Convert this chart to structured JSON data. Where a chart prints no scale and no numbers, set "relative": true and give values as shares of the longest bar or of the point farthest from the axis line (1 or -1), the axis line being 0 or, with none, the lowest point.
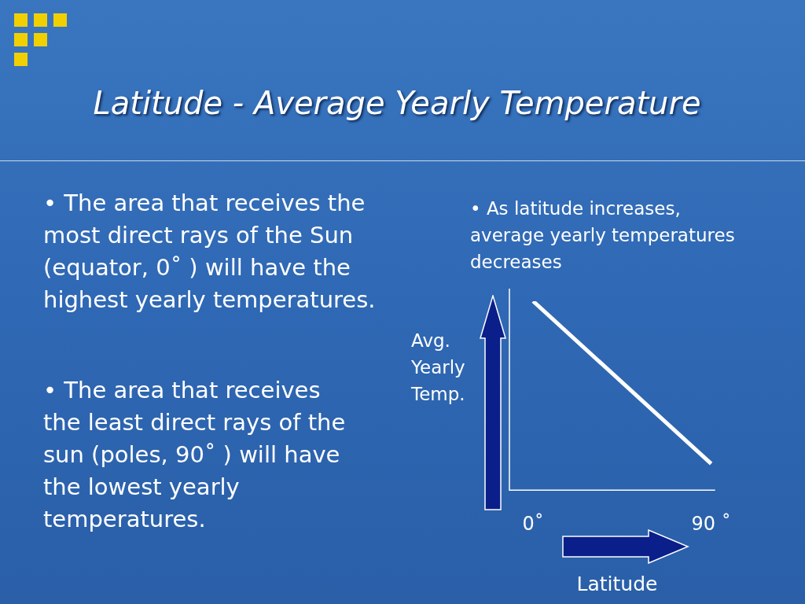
{
  "chart_data": {
    "type": "line",
    "title": "Latitude - Average Yearly Temperature",
    "xlabel": "Latitude",
    "ylabel": "Avg. Yearly Temp.",
    "annotations": [
      "• The area that receives the most direct rays of the Sun (equator, 0˚ ) will have the highest yearly temperatures.",
      "• The area that receives the least direct rays of the sun (poles, 90˚ ) will have the lowest yearly temperatures.",
      "• As latitude increases, average yearly temperatures decreases"
    ],
    "x": [
      0,
      90
    ],
    "xlim": [
      -12,
      92
    ],
    "xticks": [
      {
        "value": 0,
        "label": "0˚"
      },
      {
        "value": 90,
        "label": "90 ˚"
      }
    ],
    "relative": true,
    "series": [
      {
        "color": "#ffffff",
        "values": [
          1,
          0.14
        ]
      }
    ],
    "grid": false,
    "legend": false,
    "marker": "none",
    "line_style": "solid"
  }
}
